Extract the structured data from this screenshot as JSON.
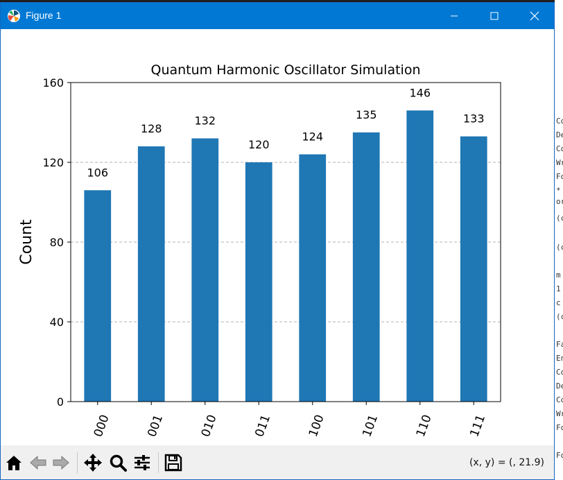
{
  "window": {
    "title": "Figure 1"
  },
  "toolbar": {
    "coords_text": "(x, y) = (, 21.9)"
  },
  "colors": {
    "titlebar": "#0078d4",
    "bar": "#1f77b4",
    "toolbar": "#f0f0f0"
  },
  "background_fragments": [
    "Co",
    "De",
    "Co",
    "Wr",
    "Fo",
    "*",
    "or",
    "(c",
    "(c",
    "m",
    "1",
    "c",
    "(c",
    "Fa",
    "En",
    "Co",
    "De",
    "Co",
    "Wr",
    "Fo",
    "Fo"
  ],
  "chart_data": {
    "type": "bar",
    "title": "Quantum Harmonic Oscillator Simulation",
    "xlabel": "",
    "ylabel": "Count",
    "categories": [
      "000",
      "001",
      "010",
      "011",
      "100",
      "101",
      "110",
      "111"
    ],
    "values": [
      106,
      128,
      132,
      120,
      124,
      135,
      146,
      133
    ],
    "ylim": [
      0,
      160
    ],
    "yticks": [
      0,
      40,
      80,
      120,
      160
    ],
    "grid": "horizontal dashed",
    "legend": "none"
  }
}
